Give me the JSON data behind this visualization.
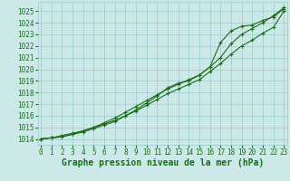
{
  "title": "Graphe pression niveau de la mer (hPa)",
  "x_values": [
    0,
    1,
    2,
    3,
    4,
    5,
    6,
    7,
    8,
    9,
    10,
    11,
    12,
    13,
    14,
    15,
    16,
    17,
    18,
    19,
    20,
    21,
    22,
    23
  ],
  "series1": [
    1014.0,
    1014.1,
    1014.3,
    1014.5,
    1014.7,
    1015.0,
    1015.4,
    1015.8,
    1016.3,
    1016.8,
    1017.3,
    1017.8,
    1018.3,
    1018.7,
    1019.1,
    1019.5,
    1020.2,
    1021.0,
    1022.2,
    1023.0,
    1023.5,
    1024.0,
    1024.6,
    1025.3
  ],
  "series2": [
    1014.0,
    1014.1,
    1014.2,
    1014.4,
    1014.6,
    1014.9,
    1015.2,
    1015.5,
    1016.0,
    1016.5,
    1017.1,
    1017.7,
    1018.4,
    1018.8,
    1019.0,
    1019.5,
    1020.2,
    1022.3,
    1023.3,
    1023.7,
    1023.8,
    1024.2,
    1024.5,
    1025.2
  ],
  "series3": [
    1014.0,
    1014.1,
    1014.2,
    1014.4,
    1014.7,
    1015.0,
    1015.3,
    1015.6,
    1016.0,
    1016.4,
    1016.9,
    1017.4,
    1017.9,
    1018.3,
    1018.7,
    1019.1,
    1019.8,
    1020.5,
    1021.3,
    1022.0,
    1022.5,
    1023.1,
    1023.6,
    1025.0
  ],
  "line_color": "#1a6e1a",
  "marker_color": "#1a6e1a",
  "bg_color": "#cce8e8",
  "grid_color": "#99cccc",
  "axis_label_color": "#1a6e1a",
  "tick_color": "#1a6e1a",
  "ylim_min": 1013.5,
  "ylim_max": 1025.8,
  "xlim_min": -0.3,
  "xlim_max": 23.3,
  "yticks": [
    1014,
    1015,
    1016,
    1017,
    1018,
    1019,
    1020,
    1021,
    1022,
    1023,
    1024,
    1025
  ],
  "title_fontsize": 7.0,
  "tick_fontsize": 5.5
}
